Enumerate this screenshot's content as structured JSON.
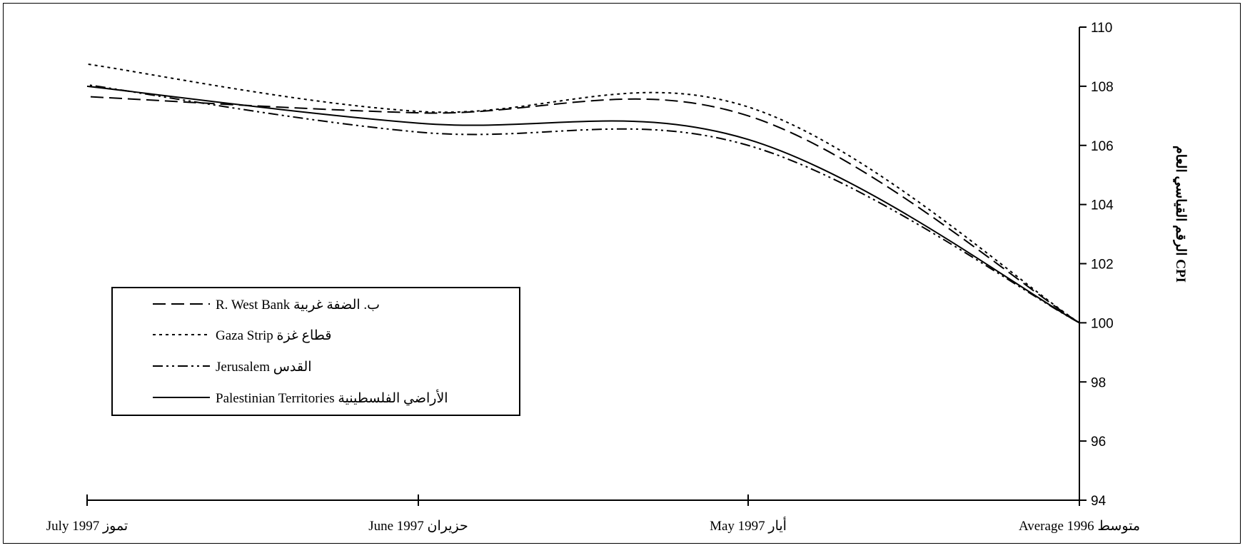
{
  "chart_data": {
    "type": "line",
    "ylabel": "الرقم القياسي العام CPI",
    "ylim": [
      94,
      110
    ],
    "yticks": [
      94,
      96,
      98,
      100,
      102,
      104,
      106,
      108,
      110
    ],
    "x_order": "right-to-left",
    "categories": [
      "Average 1996 متوسط",
      "May 1997 أيار",
      "June 1997 حزيران",
      "July 1997 تموز"
    ],
    "series": [
      {
        "name": "R. West Bank ب. الضفة غربية",
        "style": "dashed",
        "values": [
          100,
          107.0,
          107.1,
          107.65
        ]
      },
      {
        "name": "Gaza Strip قطاع غزة",
        "style": "dotted",
        "values": [
          100,
          107.3,
          107.15,
          108.75
        ]
      },
      {
        "name": "Jerusalem القدس",
        "style": "dash-dot-dot",
        "values": [
          100,
          106.0,
          106.45,
          108.05
        ]
      },
      {
        "name": "Palestinian Territories الأراضي الفلسطينية",
        "style": "solid",
        "values": [
          100,
          106.2,
          106.75,
          108.0
        ]
      }
    ],
    "legend_position": "left-middle",
    "grid": false
  }
}
